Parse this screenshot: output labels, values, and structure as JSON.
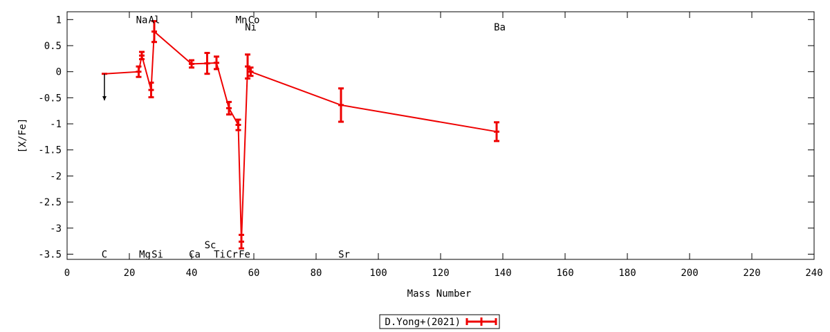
{
  "chart_data": {
    "type": "line",
    "xlabel": "Mass Number",
    "ylabel": "[X/Fe]",
    "xlim": [
      0,
      240
    ],
    "ylim": [
      -3.6,
      1.15
    ],
    "xticks": [
      0,
      20,
      40,
      60,
      80,
      100,
      120,
      140,
      160,
      180,
      200,
      220,
      240
    ],
    "yticks": [
      1,
      0.5,
      0,
      -0.5,
      -1,
      -1.5,
      -2,
      -2.5,
      -3,
      -3.5
    ],
    "ytick_labels": [
      "1",
      "0.5",
      "0",
      "-0.5",
      "-1",
      "-1.5",
      "-2",
      "-2.5",
      "-3",
      "-3.5"
    ],
    "grid": false,
    "legend_position": "bottom-center",
    "series": [
      {
        "name": "D.Yong+(2021)",
        "color": "#ee0000",
        "points": [
          {
            "x": 12,
            "y": -0.04,
            "err": 0.0
          },
          {
            "x": 23,
            "y": 0.0,
            "err": 0.1
          },
          {
            "x": 24,
            "y": 0.31,
            "err": 0.07
          },
          {
            "x": 27,
            "y": -0.35,
            "err": 0.14
          },
          {
            "x": 28,
            "y": 0.77,
            "err": 0.2
          },
          {
            "x": 40,
            "y": 0.15,
            "err": 0.07
          },
          {
            "x": 45,
            "y": 0.16,
            "err": 0.2
          },
          {
            "x": 48,
            "y": 0.17,
            "err": 0.12
          },
          {
            "x": 52,
            "y": -0.7,
            "err": 0.12
          },
          {
            "x": 55,
            "y": -1.02,
            "err": 0.1
          },
          {
            "x": 56,
            "y": -3.26,
            "err": 0.13
          },
          {
            "x": 58,
            "y": 0.1,
            "err": 0.23
          },
          {
            "x": 59,
            "y": 0.0,
            "err": 0.08
          },
          {
            "x": 88,
            "y": -0.64,
            "err": 0.32
          },
          {
            "x": 138,
            "y": -1.15,
            "err": 0.18
          }
        ]
      }
    ],
    "upper_limits": [
      {
        "x": 12,
        "y": -0.04,
        "to": -0.55,
        "color": "#000000"
      }
    ],
    "element_labels": [
      {
        "text": "C",
        "x": 12,
        "y": -3.5
      },
      {
        "text": "Na",
        "x": 24,
        "y": 1.0
      },
      {
        "text": "Al",
        "x": 28,
        "y": 1.0
      },
      {
        "text": "Mg",
        "x": 25,
        "y": -3.5
      },
      {
        "text": "Si",
        "x": 29,
        "y": -3.5
      },
      {
        "text": "Ca",
        "x": 41,
        "y": -3.5
      },
      {
        "text": "Sc",
        "x": 46,
        "y": -3.32
      },
      {
        "text": "Ti",
        "x": 49,
        "y": -3.5
      },
      {
        "text": "Cr",
        "x": 53,
        "y": -3.5
      },
      {
        "text": "Fe",
        "x": 57,
        "y": -3.5
      },
      {
        "text": "Mn",
        "x": 56,
        "y": 1.0
      },
      {
        "text": "Co",
        "x": 60,
        "y": 1.0
      },
      {
        "text": "Ni",
        "x": 59,
        "y": 0.86
      },
      {
        "text": "Sr",
        "x": 89,
        "y": -3.5
      },
      {
        "text": "Ba",
        "x": 139,
        "y": 0.86
      }
    ]
  }
}
